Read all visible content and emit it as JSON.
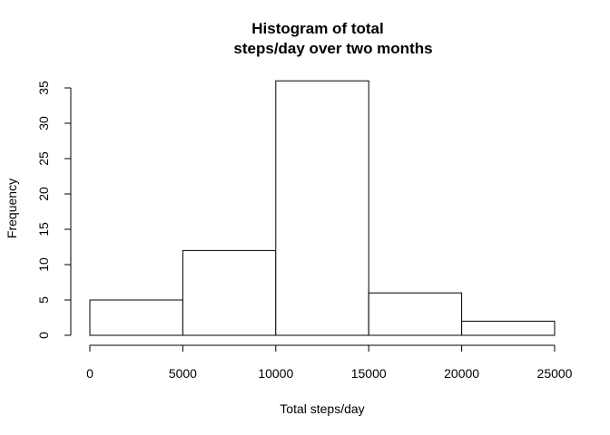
{
  "chart_data": {
    "type": "bar",
    "title": "Histogram of total steps/day over two months",
    "title_lines": [
      "Histogram of total",
      "steps/day over two months"
    ],
    "xlabel": "Total steps/day",
    "ylabel": "Frequency",
    "bins": [
      {
        "from": 0,
        "to": 5000,
        "count": 5
      },
      {
        "from": 5000,
        "to": 10000,
        "count": 12
      },
      {
        "from": 10000,
        "to": 15000,
        "count": 36
      },
      {
        "from": 15000,
        "to": 20000,
        "count": 6
      },
      {
        "from": 20000,
        "to": 25000,
        "count": 2
      }
    ],
    "xlim": [
      0,
      25000
    ],
    "ylim": [
      0,
      35
    ],
    "x_ticks": [
      0,
      5000,
      10000,
      15000,
      20000,
      25000
    ],
    "y_ticks": [
      0,
      5,
      10,
      15,
      20,
      25,
      30,
      35
    ],
    "grid": false,
    "legend": "none",
    "bar_fill": "#ffffff",
    "bar_stroke": "#000000"
  }
}
